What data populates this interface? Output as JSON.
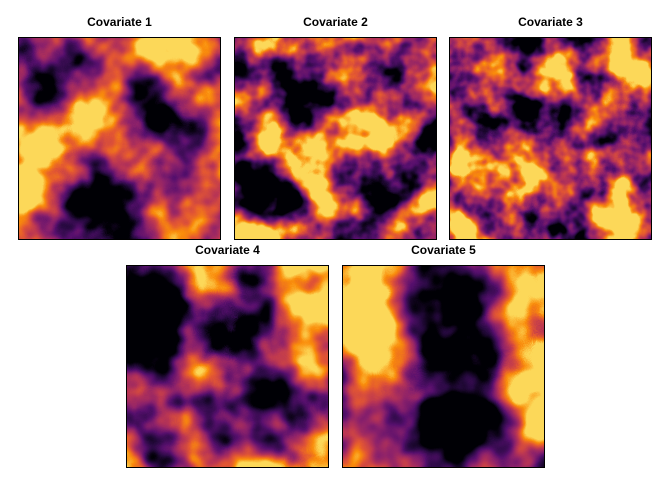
{
  "panels": [
    {
      "title": "Covariate 1"
    },
    {
      "title": "Covariate 2"
    },
    {
      "title": "Covariate 3"
    },
    {
      "title": "Covariate 4"
    },
    {
      "title": "Covariate 5"
    }
  ]
}
